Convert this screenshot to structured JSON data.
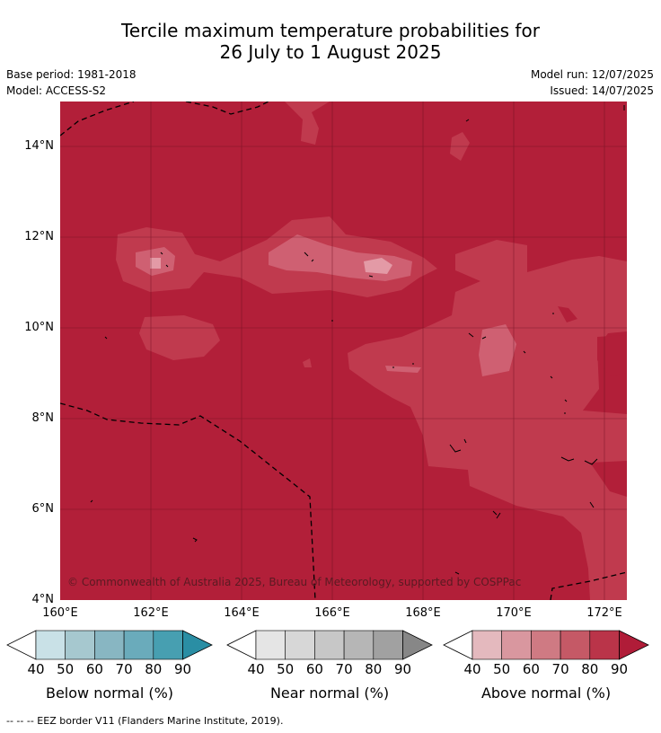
{
  "title_line1": "Tercile maximum temperature probabilities for",
  "title_line2": "26 July to 1 August 2025",
  "base_period": "Base period: 1981-2018",
  "model": "Model: ACCESS-S2",
  "model_run": "Model run: 12/07/2025",
  "issued": "Issued: 14/07/2025",
  "y_ticks": [
    "14°N",
    "12°N",
    "10°N",
    "8°N",
    "6°N",
    "4°N"
  ],
  "x_ticks": [
    "160°E",
    "162°E",
    "164°E",
    "166°E",
    "168°E",
    "170°E",
    "172°E"
  ],
  "copyright": "© Commonwealth of Australia 2025, Bureau of Meteorology, supported by COSPPac",
  "colorbars": {
    "below": {
      "label": "Below normal (%)",
      "ticks": [
        "40",
        "50",
        "60",
        "70",
        "80",
        "90"
      ],
      "colors": [
        "#ffffff",
        "#c9e1e7",
        "#a6c8cf",
        "#88b6c2",
        "#6aabbb",
        "#479fb1",
        "#2a8ea4"
      ]
    },
    "near": {
      "label": "Near normal (%)",
      "ticks": [
        "40",
        "50",
        "60",
        "70",
        "80",
        "90"
      ],
      "colors": [
        "#ffffff",
        "#e5e5e5",
        "#d7d7d7",
        "#c7c7c7",
        "#b6b6b6",
        "#a1a1a1",
        "#878787"
      ]
    },
    "above": {
      "label": "Above normal (%)",
      "ticks": [
        "40",
        "50",
        "60",
        "70",
        "80",
        "90"
      ],
      "colors": [
        "#ffffff",
        "#e4b9be",
        "#d9979f",
        "#cf7a83",
        "#c55966",
        "#ba3449",
        "#b01c38"
      ]
    }
  },
  "footnote": "-- -- -- EEZ border V11 (Flanders Marine Institute, 2019).",
  "map_colors": {
    "dominant": "#b21f39",
    "level70": "#c03a4e",
    "level60": "#cf6072",
    "level50": "#e39aa6"
  }
}
